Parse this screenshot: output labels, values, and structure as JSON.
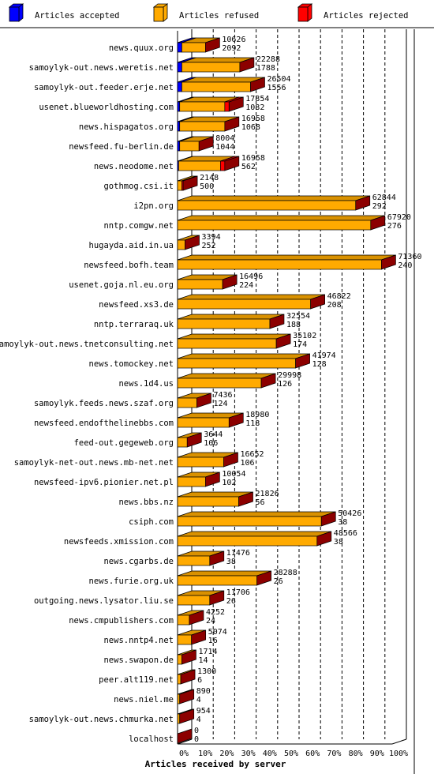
{
  "chart_data": {
    "type": "bar",
    "orientation": "horizontal",
    "stacked": true,
    "x_unit": "percent",
    "xlim": [
      0,
      100
    ],
    "xlabel": "Articles received by server",
    "x_ticks": [
      "0%",
      "10%",
      "20%",
      "30%",
      "40%",
      "50%",
      "60%",
      "70%",
      "80%",
      "90%",
      "100%"
    ],
    "grid": "vertical dashed every 10%",
    "legend_position": "top",
    "colors": {
      "accepted": "#0000ff",
      "refused": "#ffaa00",
      "rejected": "#ff0000"
    },
    "series": [
      {
        "key": "accepted",
        "name": "Articles accepted"
      },
      {
        "key": "refused",
        "name": "Articles refused"
      },
      {
        "key": "rejected",
        "name": "Articles rejected"
      }
    ],
    "rows": [
      {
        "server": "news.quux.org",
        "accepted_pct": 2,
        "refused_pct": 11,
        "rejected_pct": 0,
        "refused_label": "10626",
        "rejected_label": "2092"
      },
      {
        "server": "samoylyk-out.news.weretis.net",
        "accepted_pct": 2,
        "refused_pct": 27,
        "rejected_pct": 0,
        "refused_label": "22288",
        "rejected_label": "1788"
      },
      {
        "server": "samoylyk-out.feeder.erje.net",
        "accepted_pct": 2,
        "refused_pct": 32,
        "rejected_pct": 0,
        "refused_label": "26504",
        "rejected_label": "1556"
      },
      {
        "server": "usenet.blueworldhosting.com",
        "accepted_pct": 1,
        "refused_pct": 21,
        "rejected_pct": 2,
        "refused_label": "17854",
        "rejected_label": "1082"
      },
      {
        "server": "news.hispagatos.org",
        "accepted_pct": 1,
        "refused_pct": 21,
        "rejected_pct": 0,
        "refused_label": "16958",
        "rejected_label": "1068"
      },
      {
        "server": "newsfeed.fu-berlin.de",
        "accepted_pct": 1,
        "refused_pct": 9,
        "rejected_pct": 0,
        "refused_label": "8004",
        "rejected_label": "1044"
      },
      {
        "server": "news.neodome.net",
        "accepted_pct": 0.5,
        "refused_pct": 19.5,
        "rejected_pct": 2,
        "refused_label": "16958",
        "rejected_label": "562"
      },
      {
        "server": "gothmog.csi.it",
        "accepted_pct": 0,
        "refused_pct": 2,
        "rejected_pct": 0.6,
        "refused_label": "2148",
        "rejected_label": "500"
      },
      {
        "server": "i2pn.org",
        "accepted_pct": 0,
        "refused_pct": 83,
        "rejected_pct": 0,
        "refused_label": "62844",
        "rejected_label": "292"
      },
      {
        "server": "nntp.comgw.net",
        "accepted_pct": 0,
        "refused_pct": 90,
        "rejected_pct": 0,
        "refused_label": "67920",
        "rejected_label": "276"
      },
      {
        "server": "hugayda.aid.in.ua",
        "accepted_pct": 0,
        "refused_pct": 3.5,
        "rejected_pct": 0,
        "refused_label": "3394",
        "rejected_label": "252"
      },
      {
        "server": "newsfeed.bofh.team",
        "accepted_pct": 0,
        "refused_pct": 95,
        "rejected_pct": 0,
        "refused_label": "71360",
        "rejected_label": "240"
      },
      {
        "server": "usenet.goja.nl.eu.org",
        "accepted_pct": 0,
        "refused_pct": 21,
        "rejected_pct": 0,
        "refused_label": "16496",
        "rejected_label": "224"
      },
      {
        "server": "newsfeed.xs3.de",
        "accepted_pct": 0,
        "refused_pct": 62,
        "rejected_pct": 0,
        "refused_label": "46822",
        "rejected_label": "208"
      },
      {
        "server": "nntp.terraraq.uk",
        "accepted_pct": 0,
        "refused_pct": 43,
        "rejected_pct": 0,
        "refused_label": "32554",
        "rejected_label": "188"
      },
      {
        "server": "samoylyk-out.news.tnetconsulting.net",
        "accepted_pct": 0,
        "refused_pct": 46,
        "rejected_pct": 0,
        "refused_label": "35102",
        "rejected_label": "174"
      },
      {
        "server": "news.tomockey.net",
        "accepted_pct": 0,
        "refused_pct": 55,
        "rejected_pct": 0,
        "refused_label": "41974",
        "rejected_label": "128"
      },
      {
        "server": "news.1d4.us",
        "accepted_pct": 0,
        "refused_pct": 39,
        "rejected_pct": 0,
        "refused_label": "29998",
        "rejected_label": "126"
      },
      {
        "server": "samoylyk.feeds.news.szaf.org",
        "accepted_pct": 0,
        "refused_pct": 9,
        "rejected_pct": 0,
        "refused_label": "7436",
        "rejected_label": "124"
      },
      {
        "server": "newsfeed.endofthelinebbs.com",
        "accepted_pct": 0,
        "refused_pct": 24,
        "rejected_pct": 0,
        "refused_label": "18980",
        "rejected_label": "118"
      },
      {
        "server": "feed-out.gegeweb.org",
        "accepted_pct": 0,
        "refused_pct": 4.5,
        "rejected_pct": 0,
        "refused_label": "3644",
        "rejected_label": "106"
      },
      {
        "server": "samoylyk-net-out.news.mb-net.net",
        "accepted_pct": 0,
        "refused_pct": 21.5,
        "rejected_pct": 0,
        "refused_label": "16652",
        "rejected_label": "106"
      },
      {
        "server": "newsfeed-ipv6.pionier.net.pl",
        "accepted_pct": 0,
        "refused_pct": 13,
        "rejected_pct": 0,
        "refused_label": "10054",
        "rejected_label": "102"
      },
      {
        "server": "news.bbs.nz",
        "accepted_pct": 0,
        "refused_pct": 28.5,
        "rejected_pct": 0,
        "refused_label": "21826",
        "rejected_label": "56"
      },
      {
        "server": "csiph.com",
        "accepted_pct": 0,
        "refused_pct": 67,
        "rejected_pct": 0,
        "refused_label": "50426",
        "rejected_label": "38"
      },
      {
        "server": "newsfeeds.xmission.com",
        "accepted_pct": 0,
        "refused_pct": 65,
        "rejected_pct": 0,
        "refused_label": "48566",
        "rejected_label": "38"
      },
      {
        "server": "news.cgarbs.de",
        "accepted_pct": 0,
        "refused_pct": 15,
        "rejected_pct": 0,
        "refused_label": "11476",
        "rejected_label": "38"
      },
      {
        "server": "news.furie.org.uk",
        "accepted_pct": 0,
        "refused_pct": 37,
        "rejected_pct": 0,
        "refused_label": "28288",
        "rejected_label": "26"
      },
      {
        "server": "outgoing.news.lysator.liu.se",
        "accepted_pct": 0,
        "refused_pct": 15,
        "rejected_pct": 0,
        "refused_label": "11706",
        "rejected_label": "26"
      },
      {
        "server": "news.cmpublishers.com",
        "accepted_pct": 0,
        "refused_pct": 5.5,
        "rejected_pct": 0,
        "refused_label": "4252",
        "rejected_label": "24"
      },
      {
        "server": "news.nntp4.net",
        "accepted_pct": 0,
        "refused_pct": 6.5,
        "rejected_pct": 0,
        "refused_label": "5074",
        "rejected_label": "16"
      },
      {
        "server": "news.swapon.de",
        "accepted_pct": 0,
        "refused_pct": 2,
        "rejected_pct": 0,
        "refused_label": "1714",
        "rejected_label": "14"
      },
      {
        "server": "peer.alt119.net",
        "accepted_pct": 0,
        "refused_pct": 1.5,
        "rejected_pct": 0,
        "refused_label": "1300",
        "rejected_label": "6"
      },
      {
        "server": "news.niel.me",
        "accepted_pct": 0,
        "refused_pct": 1,
        "rejected_pct": 0,
        "refused_label": "890",
        "rejected_label": "4"
      },
      {
        "server": "samoylyk-out.news.chmurka.net",
        "accepted_pct": 0,
        "refused_pct": 1,
        "rejected_pct": 0,
        "refused_label": "954",
        "rejected_label": "4"
      },
      {
        "server": "localhost",
        "accepted_pct": 0,
        "refused_pct": 0,
        "rejected_pct": 0,
        "refused_label": "0",
        "rejected_label": "0"
      }
    ]
  }
}
